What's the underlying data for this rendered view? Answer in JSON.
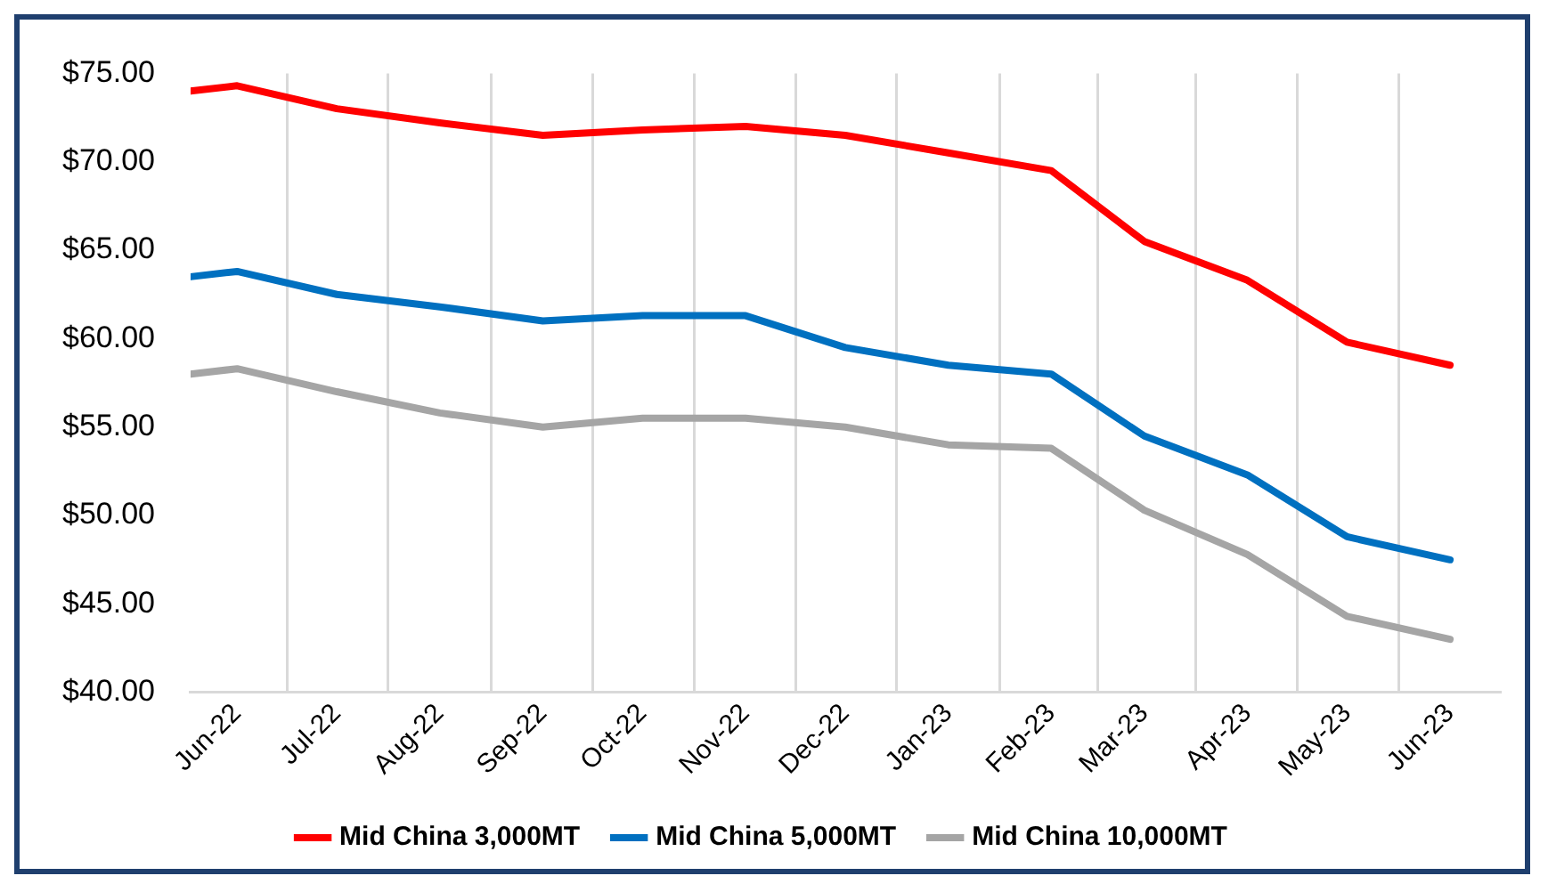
{
  "chart_data": {
    "type": "line",
    "x": [
      "2022-06-01",
      "2022-06-15",
      "2022-07-15",
      "2022-08-15",
      "2022-09-15",
      "2022-10-15",
      "2022-11-15",
      "2022-12-15",
      "2023-01-15",
      "2023-02-15",
      "2023-03-15",
      "2023-04-15",
      "2023-05-15",
      "2023-06-15"
    ],
    "series": [
      {
        "name": "Mid China 3,000MT",
        "color": "#ff0000",
        "values": [
          74.0,
          74.3,
          73.0,
          72.2,
          71.5,
          71.8,
          72.0,
          71.5,
          70.5,
          69.5,
          65.5,
          63.3,
          59.8,
          58.5
        ]
      },
      {
        "name": "Mid China 5,000MT",
        "color": "#0070c0",
        "values": [
          63.5,
          63.8,
          62.5,
          61.8,
          61.0,
          61.3,
          61.3,
          59.5,
          58.5,
          58.0,
          54.5,
          52.3,
          48.8,
          47.5
        ]
      },
      {
        "name": "Mid China 10,000MT",
        "color": "#a5a5a5",
        "values": [
          58.0,
          58.3,
          57.0,
          55.8,
          55.0,
          55.5,
          55.5,
          55.0,
          54.0,
          53.8,
          50.3,
          47.8,
          44.3,
          43.0
        ]
      }
    ],
    "xlim": [
      "2022-06-01",
      "2023-06-30"
    ],
    "xticks": [
      {
        "value": "2022-06-15",
        "label": "Jun-22"
      },
      {
        "value": "2022-07-15",
        "label": "Jul-22"
      },
      {
        "value": "2022-08-15",
        "label": "Aug-22"
      },
      {
        "value": "2022-09-15",
        "label": "Sep-22"
      },
      {
        "value": "2022-10-15",
        "label": "Oct-22"
      },
      {
        "value": "2022-11-15",
        "label": "Nov-22"
      },
      {
        "value": "2022-12-15",
        "label": "Dec-22"
      },
      {
        "value": "2023-01-15",
        "label": "Jan-23"
      },
      {
        "value": "2023-02-15",
        "label": "Feb-23"
      },
      {
        "value": "2023-03-15",
        "label": "Mar-23"
      },
      {
        "value": "2023-04-15",
        "label": "Apr-23"
      },
      {
        "value": "2023-05-15",
        "label": "May-23"
      },
      {
        "value": "2023-06-15",
        "label": "Jun-23"
      }
    ],
    "ylim": [
      40,
      75
    ],
    "yticks": [
      {
        "value": 40,
        "label": "$40.00"
      },
      {
        "value": 45,
        "label": "$45.00"
      },
      {
        "value": 50,
        "label": "$50.00"
      },
      {
        "value": 55,
        "label": "$55.00"
      },
      {
        "value": 60,
        "label": "$60.00"
      },
      {
        "value": 65,
        "label": "$65.00"
      },
      {
        "value": 70,
        "label": "$70.00"
      },
      {
        "value": 75,
        "label": "$75.00"
      }
    ],
    "grid": "x",
    "legend": "bottom",
    "marker": "none",
    "line_style": "solid"
  }
}
